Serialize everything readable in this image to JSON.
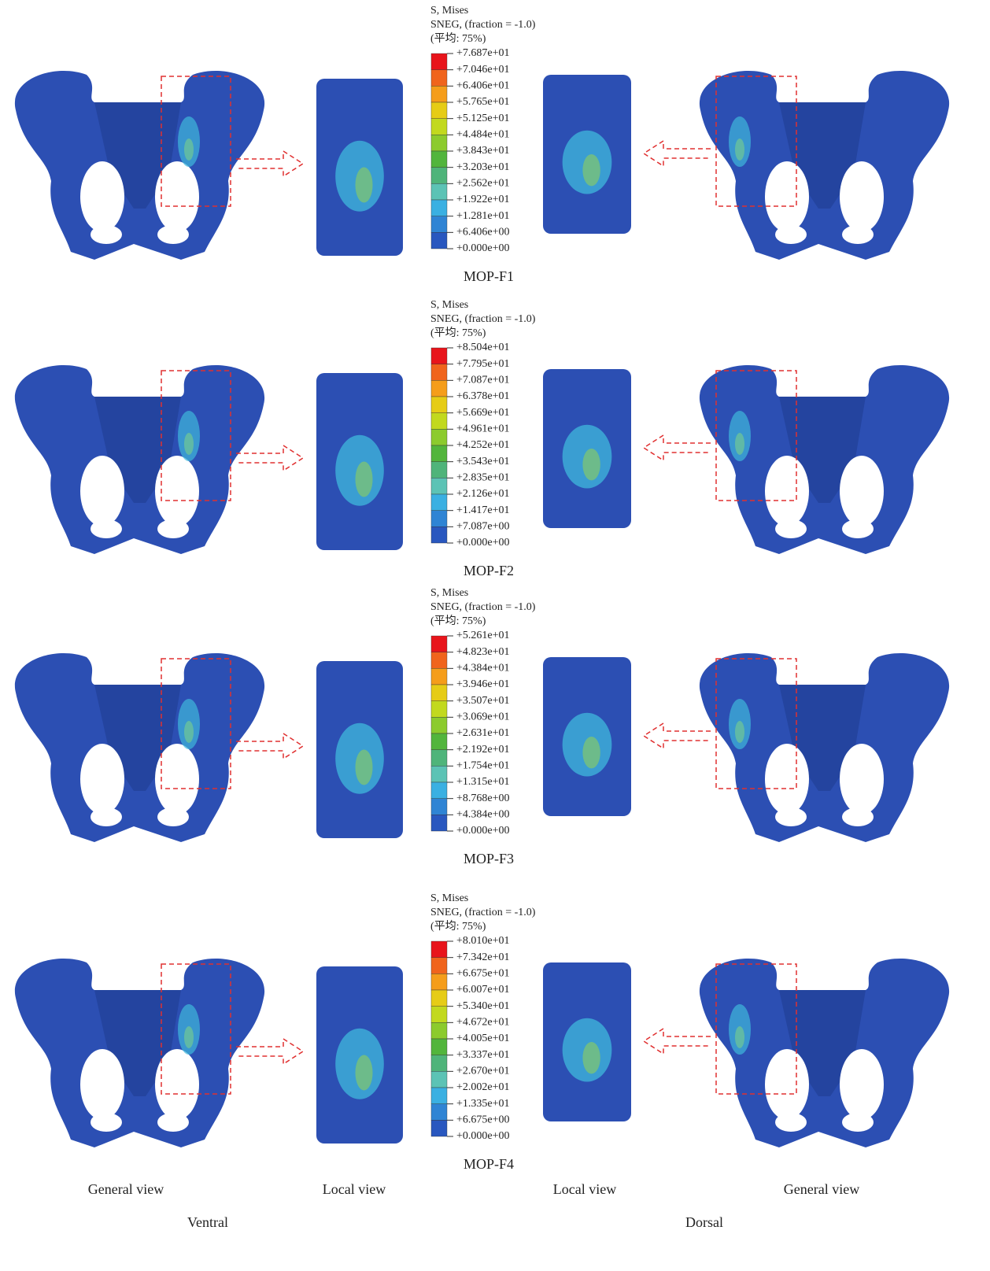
{
  "panels": [
    {
      "title": "MOP-F1",
      "legend": {
        "header": [
          "S, Mises",
          "SNEG, (fraction = -1.0)",
          "(平均: 75%)"
        ],
        "labels": [
          "+7.687e+01",
          "+7.046e+01",
          "+6.406e+01",
          "+5.765e+01",
          "+5.125e+01",
          "+4.484e+01",
          "+3.843e+01",
          "+3.203e+01",
          "+2.562e+01",
          "+1.922e+01",
          "+1.281e+01",
          "+6.406e+00",
          "+0.000e+00"
        ]
      }
    },
    {
      "title": "MOP-F2",
      "legend": {
        "header": [
          "S, Mises",
          "SNEG, (fraction = -1.0)",
          "(平均: 75%)"
        ],
        "labels": [
          "+8.504e+01",
          "+7.795e+01",
          "+7.087e+01",
          "+6.378e+01",
          "+5.669e+01",
          "+4.961e+01",
          "+4.252e+01",
          "+3.543e+01",
          "+2.835e+01",
          "+2.126e+01",
          "+1.417e+01",
          "+7.087e+00",
          "+0.000e+00"
        ]
      }
    },
    {
      "title": "MOP-F3",
      "legend": {
        "header": [
          "S, Mises",
          "SNEG, (fraction = -1.0)",
          "(平均: 75%)"
        ],
        "labels": [
          "+5.261e+01",
          "+4.823e+01",
          "+4.384e+01",
          "+3.946e+01",
          "+3.507e+01",
          "+3.069e+01",
          "+2.631e+01",
          "+2.192e+01",
          "+1.754e+01",
          "+1.315e+01",
          "+8.768e+00",
          "+4.384e+00",
          "+0.000e+00"
        ]
      }
    },
    {
      "title": "MOP-F4",
      "legend": {
        "header": [
          "S, Mises",
          "SNEG, (fraction = -1.0)",
          "(平均: 75%)"
        ],
        "labels": [
          "+8.010e+01",
          "+7.342e+01",
          "+6.675e+01",
          "+6.007e+01",
          "+5.340e+01",
          "+4.672e+01",
          "+4.005e+01",
          "+3.337e+01",
          "+2.670e+01",
          "+2.002e+01",
          "+1.335e+01",
          "+6.675e+00",
          "+0.000e+00"
        ]
      }
    }
  ],
  "footer": {
    "views": [
      "General view",
      "Local view",
      "Local view",
      "General view"
    ],
    "sides": [
      "Ventral",
      "Dorsal"
    ]
  }
}
